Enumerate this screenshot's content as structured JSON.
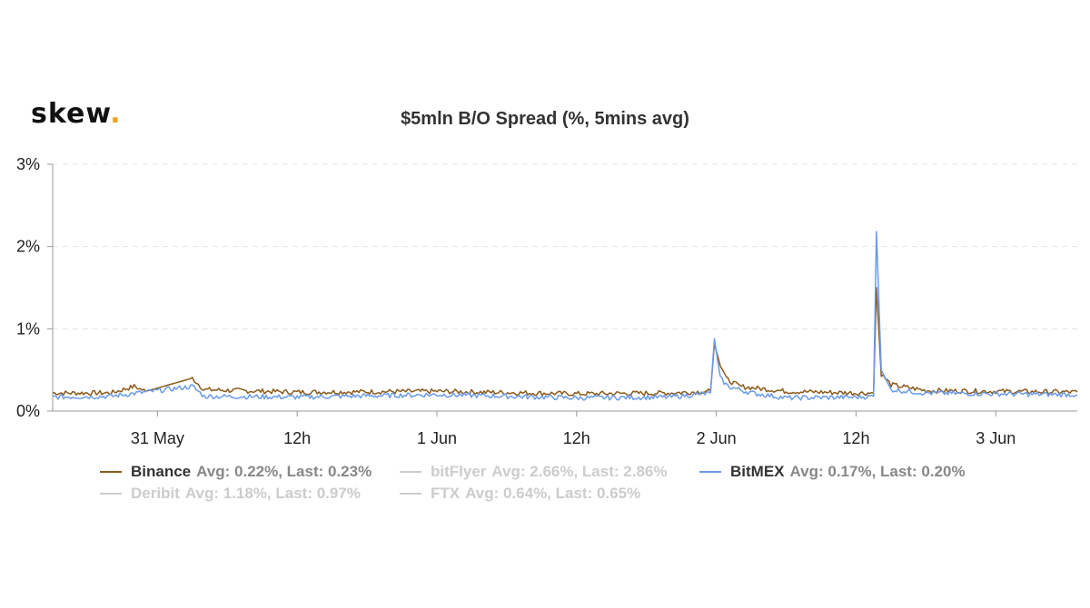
{
  "logo": {
    "text": "skew",
    "dot": "."
  },
  "chart_data": {
    "type": "line",
    "title": "$5mln B/O Spread (%, 5mins avg)",
    "xlabel": "",
    "ylabel": "",
    "x_range": [
      "2020-05-30T15:00",
      "2020-06-03T07:00"
    ],
    "x_tick_labels": [
      "31 May",
      "12h",
      "1 Jun",
      "12h",
      "2 Jun",
      "12h",
      "3 Jun"
    ],
    "x_tick_times": [
      "2020-05-31T00:00",
      "2020-05-31T12:00",
      "2020-06-01T00:00",
      "2020-06-01T12:00",
      "2020-06-02T00:00",
      "2020-06-02T12:00",
      "2020-06-03T00:00"
    ],
    "ylim": [
      0,
      3
    ],
    "y_tick_labels": [
      "0%",
      "1%",
      "2%",
      "3%"
    ],
    "y_ticks": [
      0,
      1,
      2,
      3
    ],
    "grid": "horizontal dashed",
    "legend_position": "bottom",
    "series": [
      {
        "name": "Binance",
        "color": "#8b5a1a",
        "visible": true,
        "avg_label": "Avg: 0.22%, Last: 0.23%",
        "points": [
          [
            "2020-05-30T15:00",
            0.22
          ],
          [
            "2020-05-30T20:00",
            0.22
          ],
          [
            "2020-05-30T22:00",
            0.3
          ],
          [
            "2020-05-30T23:00",
            0.24
          ],
          [
            "2020-05-31T03:00",
            0.4
          ],
          [
            "2020-05-31T04:00",
            0.26
          ],
          [
            "2020-05-31T12:00",
            0.23
          ],
          [
            "2020-06-01T00:00",
            0.24
          ],
          [
            "2020-06-01T12:00",
            0.21
          ],
          [
            "2020-06-01T20:00",
            0.22
          ],
          [
            "2020-06-01T23:30",
            0.24
          ],
          [
            "2020-06-01T23:50",
            0.82
          ],
          [
            "2020-06-02T00:20",
            0.55
          ],
          [
            "2020-06-02T01:00",
            0.38
          ],
          [
            "2020-06-02T02:00",
            0.3
          ],
          [
            "2020-06-02T06:00",
            0.24
          ],
          [
            "2020-06-02T12:00",
            0.22
          ],
          [
            "2020-06-02T13:00",
            0.22
          ],
          [
            "2020-06-02T13:30",
            0.22
          ],
          [
            "2020-06-02T13:45",
            1.5
          ],
          [
            "2020-06-02T14:10",
            0.45
          ],
          [
            "2020-06-02T15:00",
            0.32
          ],
          [
            "2020-06-02T18:00",
            0.25
          ],
          [
            "2020-06-03T00:00",
            0.24
          ],
          [
            "2020-06-03T07:00",
            0.23
          ]
        ]
      },
      {
        "name": "bitFlyer",
        "color": "#cccccc",
        "visible": false,
        "avg_label": "Avg: 2.66%, Last: 2.86%",
        "points": []
      },
      {
        "name": "BitMEX",
        "color": "#6a9be8",
        "visible": true,
        "avg_label": "Avg: 0.17%, Last: 0.20%",
        "points": [
          [
            "2020-05-30T15:00",
            0.17
          ],
          [
            "2020-05-30T20:00",
            0.18
          ],
          [
            "2020-05-31T03:00",
            0.3
          ],
          [
            "2020-05-31T04:00",
            0.18
          ],
          [
            "2020-05-31T12:00",
            0.17
          ],
          [
            "2020-06-01T00:00",
            0.2
          ],
          [
            "2020-06-01T12:00",
            0.16
          ],
          [
            "2020-06-01T20:00",
            0.17
          ],
          [
            "2020-06-01T23:30",
            0.22
          ],
          [
            "2020-06-01T23:50",
            0.88
          ],
          [
            "2020-06-02T00:20",
            0.4
          ],
          [
            "2020-06-02T01:00",
            0.3
          ],
          [
            "2020-06-02T03:00",
            0.22
          ],
          [
            "2020-06-02T06:00",
            0.16
          ],
          [
            "2020-06-02T12:00",
            0.17
          ],
          [
            "2020-06-02T13:30",
            0.18
          ],
          [
            "2020-06-02T13:45",
            2.18
          ],
          [
            "2020-06-02T14:10",
            0.5
          ],
          [
            "2020-06-02T15:00",
            0.26
          ],
          [
            "2020-06-02T18:00",
            0.22
          ],
          [
            "2020-06-03T00:00",
            0.21
          ],
          [
            "2020-06-03T07:00",
            0.2
          ]
        ]
      },
      {
        "name": "Deribit",
        "color": "#cccccc",
        "visible": false,
        "avg_label": "Avg: 1.18%, Last: 0.97%",
        "points": []
      },
      {
        "name": "FTX",
        "color": "#cccccc",
        "visible": false,
        "avg_label": "Avg: 0.64%, Last: 0.65%",
        "points": []
      }
    ]
  }
}
